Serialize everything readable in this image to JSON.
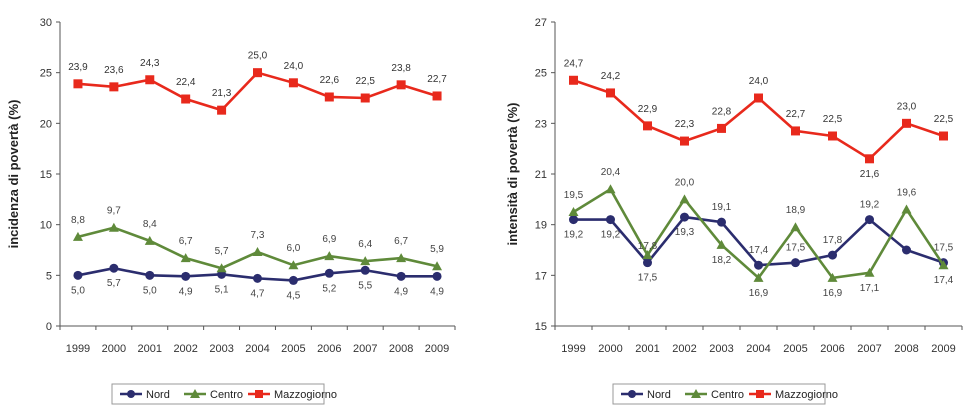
{
  "chart_data": [
    {
      "type": "line",
      "ylabel": "incidenza di povertà (%)",
      "xlabel": "",
      "ylim": [
        0,
        30
      ],
      "yticks": [
        0,
        5,
        10,
        15,
        20,
        25,
        30
      ],
      "categories": [
        "1999",
        "2000",
        "2001",
        "2002",
        "2003",
        "2004",
        "2005",
        "2006",
        "2007",
        "2008",
        "2009"
      ],
      "series": [
        {
          "name": "Nord",
          "color": "#2b2d6e",
          "marker": "circle",
          "values": [
            5.0,
            5.7,
            5.0,
            4.9,
            5.1,
            4.7,
            4.5,
            5.2,
            5.5,
            4.9,
            4.9
          ],
          "labels": [
            "5,0",
            "5,7",
            "5,0",
            "4,9",
            "5,1",
            "4,7",
            "4,5",
            "5,2",
            "5,5",
            "4,9",
            "4,9"
          ]
        },
        {
          "name": "Centro",
          "color": "#5f8a3a",
          "marker": "triangle",
          "values": [
            8.8,
            9.7,
            8.4,
            6.7,
            5.7,
            7.3,
            6.0,
            6.9,
            6.4,
            6.7,
            5.9
          ],
          "labels": [
            "8,8",
            "9,7",
            "8,4",
            "6,7",
            "5,7",
            "7,3",
            "6,0",
            "6,9",
            "6,4",
            "6,7",
            "5,9"
          ]
        },
        {
          "name": "Mazzogiorno",
          "color": "#e8291c",
          "marker": "square",
          "values": [
            23.9,
            23.6,
            24.3,
            22.4,
            21.3,
            25.0,
            24.0,
            22.6,
            22.5,
            23.8,
            22.7
          ],
          "labels": [
            "23,9",
            "23,6",
            "24,3",
            "22,4",
            "21,3",
            "25,0",
            "24,0",
            "22,6",
            "22,5",
            "23,8",
            "22,7"
          ]
        }
      ],
      "legend": [
        "Nord",
        "Centro",
        "Mazzogiorno"
      ],
      "legend_position": "bottom"
    },
    {
      "type": "line",
      "ylabel": "intensità di povertà (%)",
      "xlabel": "",
      "ylim": [
        15,
        27
      ],
      "yticks": [
        15,
        17,
        19,
        21,
        23,
        25,
        27
      ],
      "categories": [
        "1999",
        "2000",
        "2001",
        "2002",
        "2003",
        "2004",
        "2005",
        "2006",
        "2007",
        "2008",
        "2009"
      ],
      "series": [
        {
          "name": "Nord",
          "color": "#2b2d6e",
          "marker": "circle",
          "values": [
            19.2,
            19.2,
            17.5,
            19.3,
            19.1,
            17.4,
            17.5,
            17.8,
            19.2,
            18.0,
            17.5
          ],
          "labels": [
            "19,2",
            "19,2",
            "17,5",
            "19,3",
            "19,1",
            "17,4",
            "17,5",
            "17,8",
            "19,2",
            "",
            "17,5"
          ]
        },
        {
          "name": "Centro",
          "color": "#5f8a3a",
          "marker": "triangle",
          "values": [
            19.5,
            20.4,
            17.8,
            20.0,
            18.2,
            16.9,
            18.9,
            16.9,
            17.1,
            19.6,
            17.4
          ],
          "labels": [
            "19,5",
            "20,4",
            "17,8",
            "20,0",
            "18,2",
            "16,9",
            "18,9",
            "16,9",
            "17,1",
            "19,6",
            "17,4"
          ]
        },
        {
          "name": "Mazzogiorno",
          "color": "#e8291c",
          "marker": "square",
          "values": [
            24.7,
            24.2,
            22.9,
            22.3,
            22.8,
            24.0,
            22.7,
            22.5,
            21.6,
            23.0,
            22.5
          ],
          "labels": [
            "24,7",
            "24,2",
            "22,9",
            "22,3",
            "22,8",
            "24,0",
            "22,7",
            "22,5",
            "21,6",
            "23,0",
            "22,5"
          ]
        }
      ],
      "legend": [
        "Nord",
        "Centro",
        "Mazzogiorno"
      ],
      "legend_position": "bottom"
    }
  ]
}
